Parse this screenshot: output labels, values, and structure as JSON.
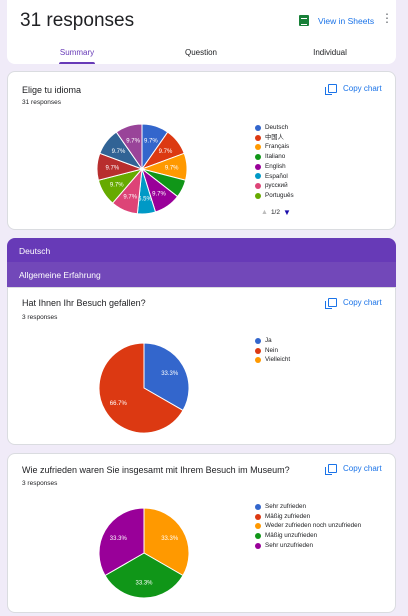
{
  "header": {
    "title": "31 responses",
    "view_in_sheets": "View in Sheets",
    "tabs": [
      {
        "label": "Summary"
      },
      {
        "label": "Question"
      },
      {
        "label": "Individual"
      }
    ]
  },
  "copy_chart_label": "Copy chart",
  "questions": [
    {
      "title": "Elige tu idioma",
      "count": "31 responses",
      "pager": "1/2",
      "legend": [
        {
          "label": "Deutsch",
          "color": "#3366cc"
        },
        {
          "label": "中国人",
          "color": "#dc3912"
        },
        {
          "label": "Français",
          "color": "#ff9900"
        },
        {
          "label": "Italiano",
          "color": "#109618"
        },
        {
          "label": "English",
          "color": "#990099"
        },
        {
          "label": "Español",
          "color": "#0099c6"
        },
        {
          "label": "русский",
          "color": "#dd4477"
        },
        {
          "label": "Português",
          "color": "#66aa00"
        }
      ]
    },
    {
      "title": "Hat Ihnen Ihr Besuch gefallen?",
      "count": "3 responses",
      "legend": [
        {
          "label": "Ja",
          "color": "#3366cc"
        },
        {
          "label": "Nein",
          "color": "#dc3912"
        },
        {
          "label": "Vielleicht",
          "color": "#ff9900"
        }
      ]
    },
    {
      "title": "Wie zufrieden waren Sie insgesamt mit Ihrem Besuch im Museum?",
      "count": "3 responses",
      "legend": [
        {
          "label": "Sehr zufrieden",
          "color": "#3366cc"
        },
        {
          "label": "Mäßig zufrieden",
          "color": "#dc3912"
        },
        {
          "label": "Weder zufrieden noch unzufrieden",
          "color": "#ff9900"
        },
        {
          "label": "Mäßig unzufrieden",
          "color": "#109618"
        },
        {
          "label": "Sehr unzufrieden",
          "color": "#990099"
        }
      ]
    }
  ],
  "sections": {
    "language": "Deutsch",
    "experience": "Allgemeine Erfahrung"
  },
  "chart_data": [
    {
      "type": "pie",
      "title": "Elige tu idioma",
      "slices": [
        {
          "color": "#3366cc",
          "value": 9.7,
          "label": "9.7%"
        },
        {
          "color": "#dc3912",
          "value": 9.7,
          "label": "9.7%"
        },
        {
          "color": "#ff9900",
          "value": 9.7,
          "label": "9.7%"
        },
        {
          "color": "#109618",
          "value": 6.5,
          "label": ""
        },
        {
          "color": "#990099",
          "value": 9.7,
          "label": "9.7%"
        },
        {
          "color": "#0099c6",
          "value": 6.5,
          "label": "6.5%"
        },
        {
          "color": "#dd4477",
          "value": 9.7,
          "label": "9.7%"
        },
        {
          "color": "#66aa00",
          "value": 9.7,
          "label": "9.7%"
        },
        {
          "color": "#b82e2e",
          "value": 9.7,
          "label": "9.7%"
        },
        {
          "color": "#316395",
          "value": 9.7,
          "label": "9.7%"
        },
        {
          "color": "#994499",
          "value": 9.7,
          "label": "9.7%"
        }
      ]
    },
    {
      "type": "pie",
      "title": "Hat Ihnen Ihr Besuch gefallen?",
      "slices": [
        {
          "name": "Ja",
          "color": "#3366cc",
          "value": 33.3,
          "label": "33.3%"
        },
        {
          "name": "Nein",
          "color": "#dc3912",
          "value": 66.7,
          "label": "66.7%"
        }
      ]
    },
    {
      "type": "pie",
      "title": "Wie zufrieden waren Sie insgesamt mit Ihrem Besuch im Museum?",
      "slices": [
        {
          "name": "Weder zufrieden noch unzufrieden",
          "color": "#ff9900",
          "value": 33.3,
          "label": "33.3%"
        },
        {
          "name": "Mäßig unzufrieden",
          "color": "#109618",
          "value": 33.3,
          "label": "33.3%"
        },
        {
          "name": "Sehr unzufrieden",
          "color": "#990099",
          "value": 33.3,
          "label": "33.3%"
        }
      ]
    }
  ]
}
